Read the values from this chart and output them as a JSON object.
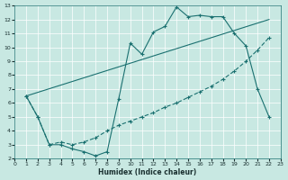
{
  "xlabel": "Humidex (Indice chaleur)",
  "bg_color": "#c8e8e2",
  "line_color": "#1a7070",
  "xlim": [
    0,
    23
  ],
  "ylim": [
    2,
    13
  ],
  "yticks": [
    2,
    3,
    4,
    5,
    6,
    7,
    8,
    9,
    10,
    11,
    12,
    13
  ],
  "xticks": [
    0,
    1,
    2,
    3,
    4,
    5,
    6,
    7,
    8,
    9,
    10,
    11,
    12,
    13,
    14,
    15,
    16,
    17,
    18,
    19,
    20,
    21,
    22,
    23
  ],
  "line1_x": [
    1,
    2,
    3,
    4,
    5,
    6,
    7,
    8,
    9,
    10,
    11,
    12,
    13,
    14,
    15,
    16,
    17,
    18,
    19,
    20,
    21,
    22
  ],
  "line1_y": [
    6.5,
    5.0,
    3.0,
    3.0,
    2.7,
    2.5,
    2.2,
    2.5,
    6.3,
    10.3,
    9.5,
    11.1,
    11.5,
    12.9,
    12.2,
    12.3,
    12.2,
    12.2,
    11.0,
    10.1,
    7.0,
    5.0
  ],
  "line2_x": [
    1,
    22
  ],
  "line2_y": [
    6.5,
    12.0
  ],
  "line3_x": [
    1,
    2,
    3,
    4,
    5,
    6,
    7,
    8,
    9,
    10,
    11,
    12,
    13,
    14,
    15,
    16,
    17,
    18,
    19,
    20,
    21,
    22
  ],
  "line3_y": [
    6.5,
    5.0,
    3.0,
    3.2,
    3.0,
    3.2,
    3.5,
    4.0,
    4.4,
    4.7,
    5.0,
    5.3,
    5.7,
    6.0,
    6.4,
    6.8,
    7.2,
    7.7,
    8.3,
    9.0,
    9.8,
    10.7
  ]
}
